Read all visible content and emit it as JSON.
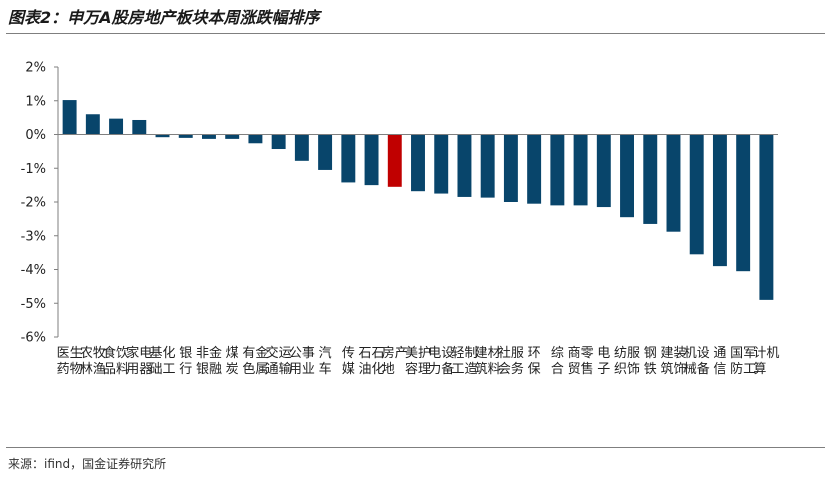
{
  "header": {
    "title": "图表2：申万A股房地产板块本周涨跌幅排序"
  },
  "footer": {
    "source": "来源：ifind，国金证券研究所"
  },
  "colors": {
    "bar": "#08456b",
    "highlight": "#c00000",
    "axis": "#7f7f7f"
  },
  "chart_data": {
    "type": "bar",
    "title": "申万A股房地产板块本周涨跌幅排序",
    "xlabel": "",
    "ylabel": "",
    "ylim": [
      -6,
      2
    ],
    "yticks": [
      "2%",
      "1%",
      "0%",
      "-1%",
      "-2%",
      "-3%",
      "-4%",
      "-5%",
      "-6%"
    ],
    "unit": "%",
    "highlight": "房地产",
    "grid": false,
    "legend": "none",
    "categories": [
      "医药生物",
      "农林牧渔",
      "食品饮料",
      "家用电器",
      "基础化工",
      "银行",
      "非银金融",
      "煤炭",
      "有色金属",
      "交通运输",
      "公用事业",
      "汽车",
      "传媒",
      "石油石化",
      "房地产",
      "美容护理",
      "电力设备",
      "轻工制造",
      "建筑材料",
      "社会服务",
      "环保",
      "综合",
      "商贸零售",
      "电子",
      "纺织服饰",
      "钢铁",
      "建筑装饰",
      "机械设备",
      "通信",
      "国防军工",
      "计算机"
    ],
    "values": [
      1.02,
      0.6,
      0.47,
      0.43,
      -0.08,
      -0.1,
      -0.13,
      -0.13,
      -0.26,
      -0.43,
      -0.78,
      -1.05,
      -1.42,
      -1.5,
      -1.55,
      -1.68,
      -1.75,
      -1.85,
      -1.87,
      -2.0,
      -2.05,
      -2.1,
      -2.1,
      -2.15,
      -2.45,
      -2.65,
      -2.88,
      -3.55,
      -3.9,
      -4.05,
      -4.9
    ]
  }
}
